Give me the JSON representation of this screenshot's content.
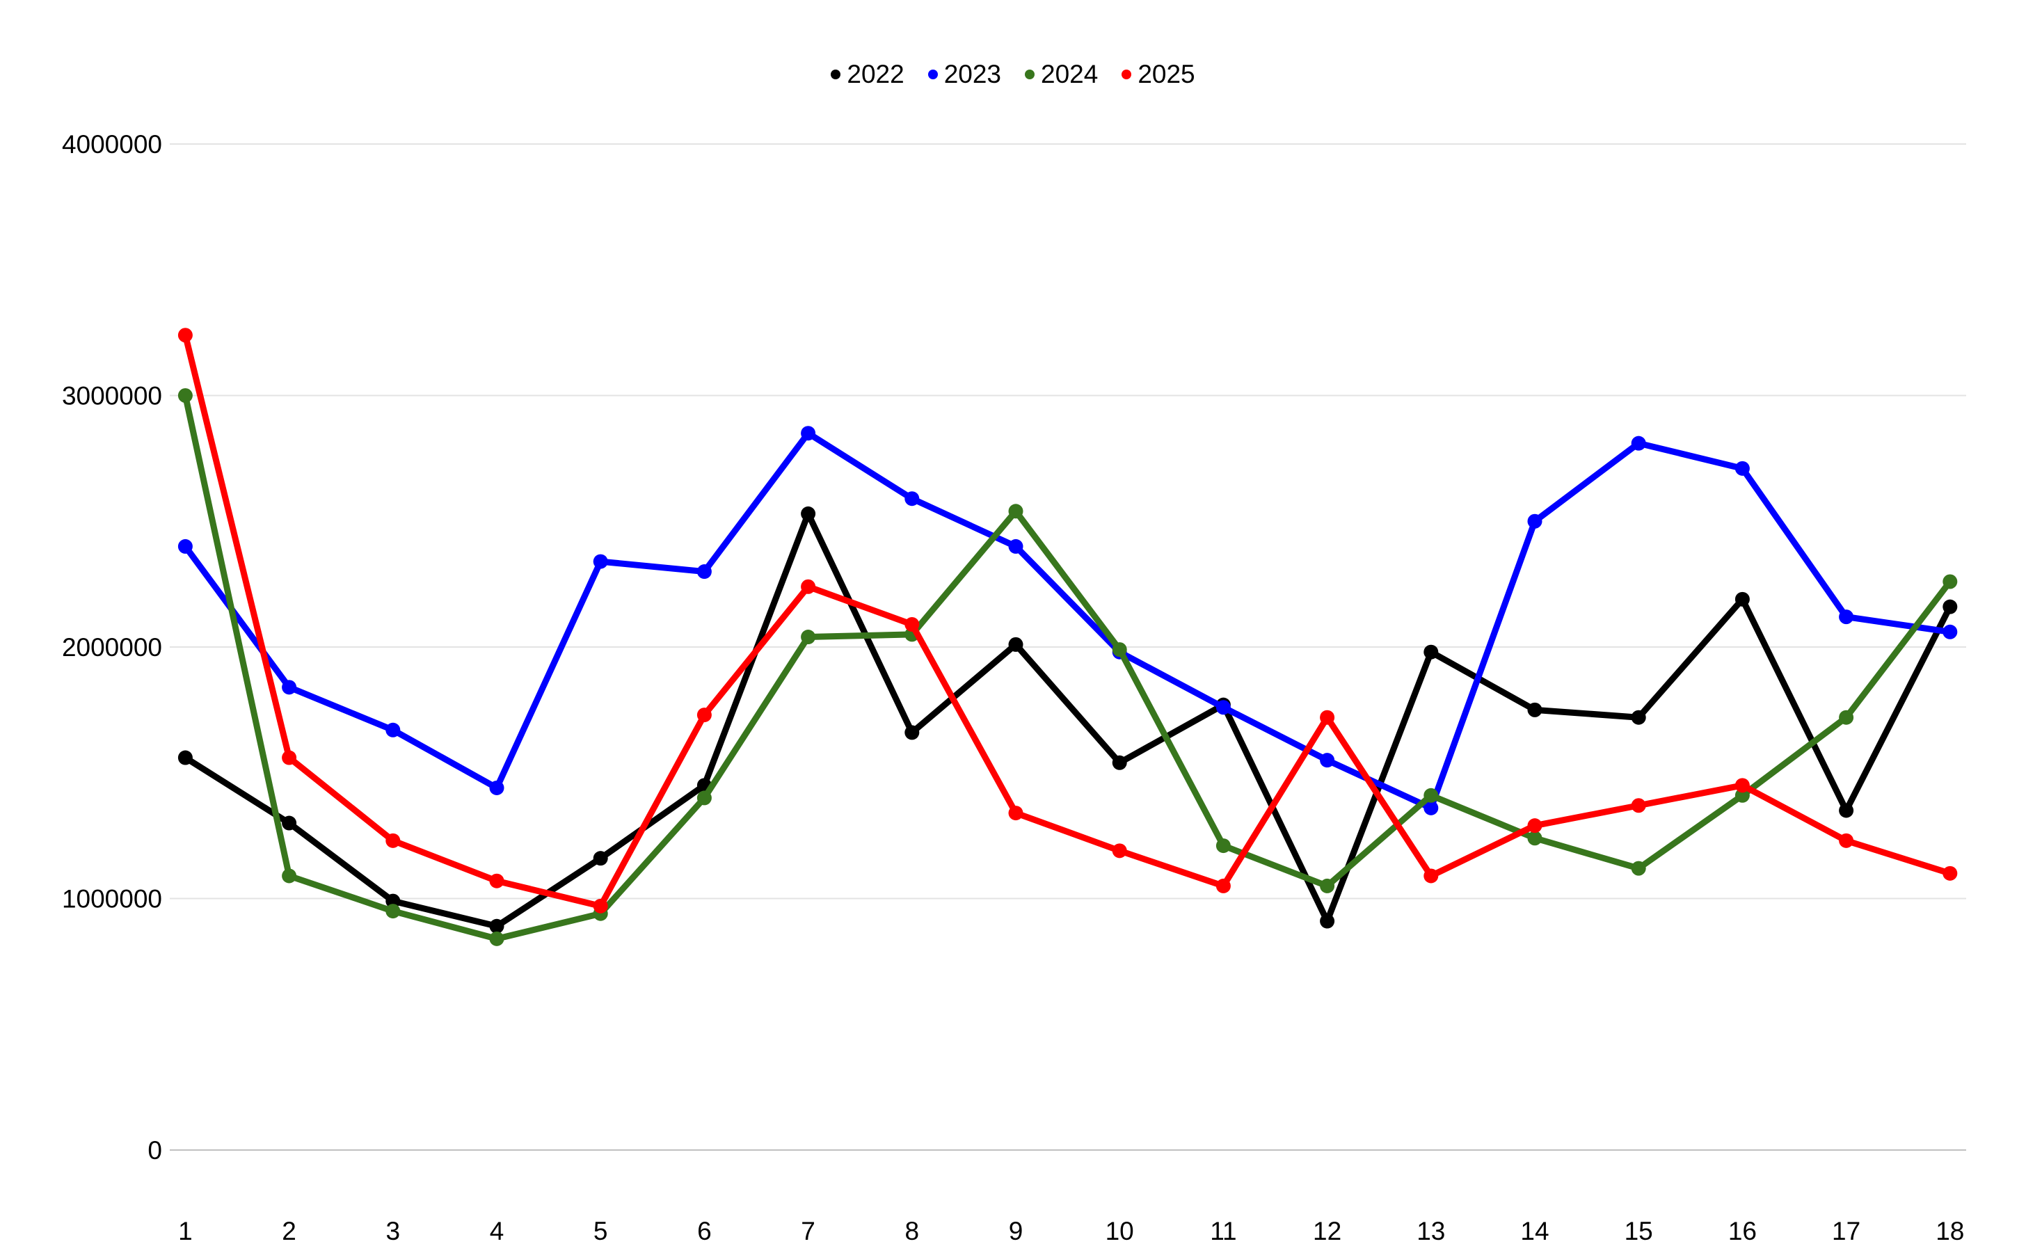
{
  "chart_data": {
    "type": "line",
    "title": "",
    "x": [
      1,
      2,
      3,
      4,
      5,
      6,
      7,
      8,
      9,
      10,
      11,
      12,
      13,
      14,
      15,
      16,
      17,
      18
    ],
    "series": [
      {
        "name": "2022",
        "color": "#000000",
        "values": [
          1560000,
          1300000,
          990000,
          890000,
          1160000,
          1450000,
          2530000,
          1660000,
          2010000,
          1540000,
          1770000,
          910000,
          1980000,
          1750000,
          1720000,
          2190000,
          1350000,
          2160000
        ]
      },
      {
        "name": "2023",
        "color": "#0000ff",
        "values": [
          2400000,
          1840000,
          1670000,
          1440000,
          2340000,
          2300000,
          2850000,
          2590000,
          2400000,
          1980000,
          1760000,
          1550000,
          1360000,
          2500000,
          2810000,
          2710000,
          2120000,
          2060000
        ]
      },
      {
        "name": "2024",
        "color": "#38761d",
        "values": [
          3000000,
          1090000,
          950000,
          840000,
          940000,
          1400000,
          2040000,
          2050000,
          2540000,
          1990000,
          1210000,
          1050000,
          1410000,
          1240000,
          1120000,
          1410000,
          1720000,
          2260000
        ]
      },
      {
        "name": "2025",
        "color": "#ff0000",
        "values": [
          3240000,
          1560000,
          1230000,
          1070000,
          970000,
          1730000,
          2240000,
          2090000,
          1340000,
          1190000,
          1050000,
          1720000,
          1090000,
          1290000,
          1370000,
          1450000,
          1230000,
          1100000
        ]
      }
    ],
    "yticks": [
      0,
      1000000,
      2000000,
      3000000,
      4000000
    ],
    "ylim": [
      0,
      4000000
    ],
    "xlabel": "",
    "ylabel": "",
    "grid": true,
    "legend_position": "top-center"
  },
  "colors": {
    "background": "#ffffff",
    "gridline": "#e3e3e3",
    "baseline": "#c0c0c0",
    "text": "#000000"
  }
}
